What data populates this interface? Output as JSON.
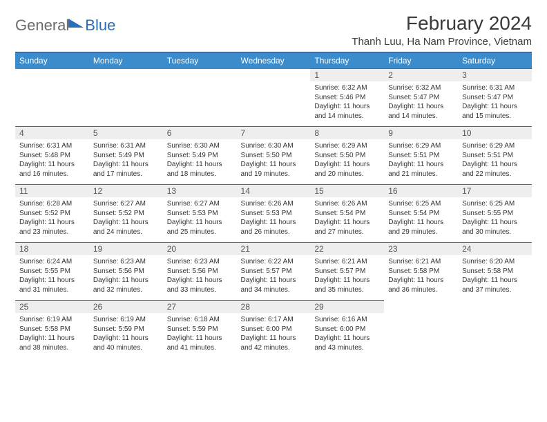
{
  "brand": {
    "part1": "General",
    "part2": "Blue"
  },
  "title": "February 2024",
  "location": "Thanh Luu, Ha Nam Province, Vietnam",
  "colors": {
    "header_bg": "#3b8ccc",
    "border": "#2a6db8",
    "daynum_bg": "#eeeeee",
    "text": "#333333"
  },
  "weekdays": [
    "Sunday",
    "Monday",
    "Tuesday",
    "Wednesday",
    "Thursday",
    "Friday",
    "Saturday"
  ],
  "weeks": [
    [
      null,
      null,
      null,
      null,
      {
        "n": "1",
        "sunrise": "6:32 AM",
        "sunset": "5:46 PM",
        "dl": "11 hours and 14 minutes."
      },
      {
        "n": "2",
        "sunrise": "6:32 AM",
        "sunset": "5:47 PM",
        "dl": "11 hours and 14 minutes."
      },
      {
        "n": "3",
        "sunrise": "6:31 AM",
        "sunset": "5:47 PM",
        "dl": "11 hours and 15 minutes."
      }
    ],
    [
      {
        "n": "4",
        "sunrise": "6:31 AM",
        "sunset": "5:48 PM",
        "dl": "11 hours and 16 minutes."
      },
      {
        "n": "5",
        "sunrise": "6:31 AM",
        "sunset": "5:49 PM",
        "dl": "11 hours and 17 minutes."
      },
      {
        "n": "6",
        "sunrise": "6:30 AM",
        "sunset": "5:49 PM",
        "dl": "11 hours and 18 minutes."
      },
      {
        "n": "7",
        "sunrise": "6:30 AM",
        "sunset": "5:50 PM",
        "dl": "11 hours and 19 minutes."
      },
      {
        "n": "8",
        "sunrise": "6:29 AM",
        "sunset": "5:50 PM",
        "dl": "11 hours and 20 minutes."
      },
      {
        "n": "9",
        "sunrise": "6:29 AM",
        "sunset": "5:51 PM",
        "dl": "11 hours and 21 minutes."
      },
      {
        "n": "10",
        "sunrise": "6:29 AM",
        "sunset": "5:51 PM",
        "dl": "11 hours and 22 minutes."
      }
    ],
    [
      {
        "n": "11",
        "sunrise": "6:28 AM",
        "sunset": "5:52 PM",
        "dl": "11 hours and 23 minutes."
      },
      {
        "n": "12",
        "sunrise": "6:27 AM",
        "sunset": "5:52 PM",
        "dl": "11 hours and 24 minutes."
      },
      {
        "n": "13",
        "sunrise": "6:27 AM",
        "sunset": "5:53 PM",
        "dl": "11 hours and 25 minutes."
      },
      {
        "n": "14",
        "sunrise": "6:26 AM",
        "sunset": "5:53 PM",
        "dl": "11 hours and 26 minutes."
      },
      {
        "n": "15",
        "sunrise": "6:26 AM",
        "sunset": "5:54 PM",
        "dl": "11 hours and 27 minutes."
      },
      {
        "n": "16",
        "sunrise": "6:25 AM",
        "sunset": "5:54 PM",
        "dl": "11 hours and 29 minutes."
      },
      {
        "n": "17",
        "sunrise": "6:25 AM",
        "sunset": "5:55 PM",
        "dl": "11 hours and 30 minutes."
      }
    ],
    [
      {
        "n": "18",
        "sunrise": "6:24 AM",
        "sunset": "5:55 PM",
        "dl": "11 hours and 31 minutes."
      },
      {
        "n": "19",
        "sunrise": "6:23 AM",
        "sunset": "5:56 PM",
        "dl": "11 hours and 32 minutes."
      },
      {
        "n": "20",
        "sunrise": "6:23 AM",
        "sunset": "5:56 PM",
        "dl": "11 hours and 33 minutes."
      },
      {
        "n": "21",
        "sunrise": "6:22 AM",
        "sunset": "5:57 PM",
        "dl": "11 hours and 34 minutes."
      },
      {
        "n": "22",
        "sunrise": "6:21 AM",
        "sunset": "5:57 PM",
        "dl": "11 hours and 35 minutes."
      },
      {
        "n": "23",
        "sunrise": "6:21 AM",
        "sunset": "5:58 PM",
        "dl": "11 hours and 36 minutes."
      },
      {
        "n": "24",
        "sunrise": "6:20 AM",
        "sunset": "5:58 PM",
        "dl": "11 hours and 37 minutes."
      }
    ],
    [
      {
        "n": "25",
        "sunrise": "6:19 AM",
        "sunset": "5:58 PM",
        "dl": "11 hours and 38 minutes."
      },
      {
        "n": "26",
        "sunrise": "6:19 AM",
        "sunset": "5:59 PM",
        "dl": "11 hours and 40 minutes."
      },
      {
        "n": "27",
        "sunrise": "6:18 AM",
        "sunset": "5:59 PM",
        "dl": "11 hours and 41 minutes."
      },
      {
        "n": "28",
        "sunrise": "6:17 AM",
        "sunset": "6:00 PM",
        "dl": "11 hours and 42 minutes."
      },
      {
        "n": "29",
        "sunrise": "6:16 AM",
        "sunset": "6:00 PM",
        "dl": "11 hours and 43 minutes."
      },
      null,
      null
    ]
  ],
  "labels": {
    "sunrise": "Sunrise:",
    "sunset": "Sunset:",
    "daylight": "Daylight:"
  }
}
